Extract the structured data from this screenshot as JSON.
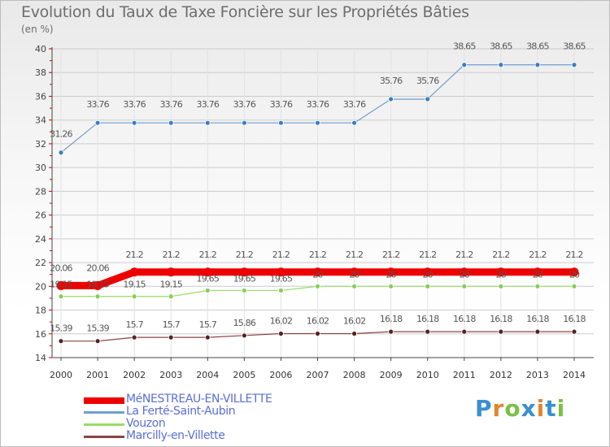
{
  "title": "Evolution du Taux de Taxe Foncière sur les Propriétés Bâties",
  "unit_label": "(en %)",
  "chart_data": {
    "type": "line",
    "title": "Evolution du Taux de Taxe Foncière sur les Propriétés Bâties",
    "ylabel": "(en %)",
    "xlabel": "",
    "x": [
      "2000",
      "2001",
      "2002",
      "2003",
      "2004",
      "2005",
      "2006",
      "2007",
      "2008",
      "2009",
      "2010",
      "2011",
      "2012",
      "2013",
      "2014"
    ],
    "ylim": [
      14,
      40
    ],
    "yticks": [
      14,
      16,
      18,
      20,
      22,
      24,
      26,
      28,
      30,
      32,
      34,
      36,
      38,
      40
    ],
    "series": [
      {
        "name": "MéNESTREAU-EN-VILLETTE",
        "color": "#ee0000",
        "values": [
          20.06,
          20.06,
          21.2,
          21.2,
          21.2,
          21.2,
          21.2,
          21.2,
          21.2,
          21.2,
          21.2,
          21.2,
          21.2,
          21.2,
          21.2
        ],
        "labels": [
          "20.06",
          "20.06",
          "21.2",
          "21.2",
          "21.2",
          "21.2",
          "21.2",
          "21.2",
          "21.2",
          "21.2",
          "21.2",
          "21.2",
          "21.2",
          "21.2",
          "21.2"
        ]
      },
      {
        "name": "La Ferté-Saint-Aubin",
        "color": "#6f9fd0",
        "values": [
          31.26,
          33.76,
          33.76,
          33.76,
          33.76,
          33.76,
          33.76,
          33.76,
          33.76,
          35.76,
          35.76,
          38.65,
          38.65,
          38.65,
          38.65
        ],
        "labels": [
          "31.26",
          "33.76",
          "33.76",
          "33.76",
          "33.76",
          "33.76",
          "33.76",
          "33.76",
          "33.76",
          "35.76",
          "35.76",
          "38.65",
          "38.65",
          "38.65",
          "38.65"
        ]
      },
      {
        "name": "Vouzon",
        "color": "#99dd66",
        "values": [
          19.15,
          19.15,
          19.15,
          19.15,
          19.65,
          19.65,
          19.65,
          20,
          20,
          20,
          20,
          20,
          20,
          20,
          20
        ],
        "labels": [
          "19.15",
          "19.15",
          "19.15",
          "19.15",
          "19.65",
          "19.65",
          "19.65",
          "20",
          "20",
          "20",
          "20",
          "20",
          "20",
          "20",
          "20"
        ]
      },
      {
        "name": "Marcilly-en-Villette",
        "color": "#884444",
        "values": [
          15.39,
          15.39,
          15.7,
          15.7,
          15.7,
          15.86,
          16.02,
          16.02,
          16.02,
          16.18,
          16.18,
          16.18,
          16.18,
          16.18,
          16.18
        ],
        "labels": [
          "15.39",
          "15.39",
          "15.7",
          "15.7",
          "15.7",
          "15.86",
          "16.02",
          "16.02",
          "16.02",
          "16.18",
          "16.18",
          "16.18",
          "16.18",
          "16.18",
          "16.18"
        ]
      }
    ]
  },
  "logo": {
    "letters": [
      "P",
      "r",
      "o",
      "x",
      "i",
      "t",
      "i"
    ],
    "colors": [
      "#3a8fd0",
      "#e2852a",
      "#7bc043",
      "#3a8fd0",
      "#e2852a",
      "#3a8fd0",
      "#7bc043"
    ]
  }
}
